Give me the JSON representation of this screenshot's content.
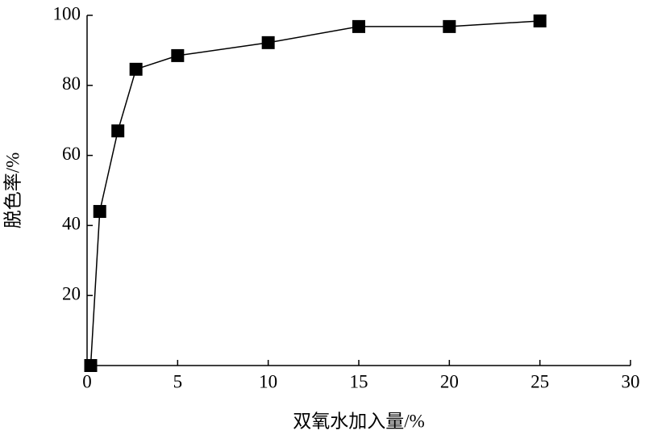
{
  "chart_data": {
    "type": "line",
    "x_label": "双氧水加入量/%",
    "y_label": "脱色率/%",
    "x": [
      0.2,
      0.7,
      1.7,
      2.7,
      5,
      10,
      15,
      20,
      25
    ],
    "series": [
      {
        "color": "#000000",
        "values": [
          0,
          44,
          67,
          84.6,
          88.5,
          92.2,
          96.8,
          96.8,
          98.4
        ]
      }
    ],
    "xlim": [
      0,
      30
    ],
    "xticks": [
      0,
      5,
      10,
      15,
      20,
      25,
      30
    ],
    "ylim": [
      0,
      100
    ],
    "yticks": [
      20,
      40,
      60,
      80,
      100
    ]
  }
}
